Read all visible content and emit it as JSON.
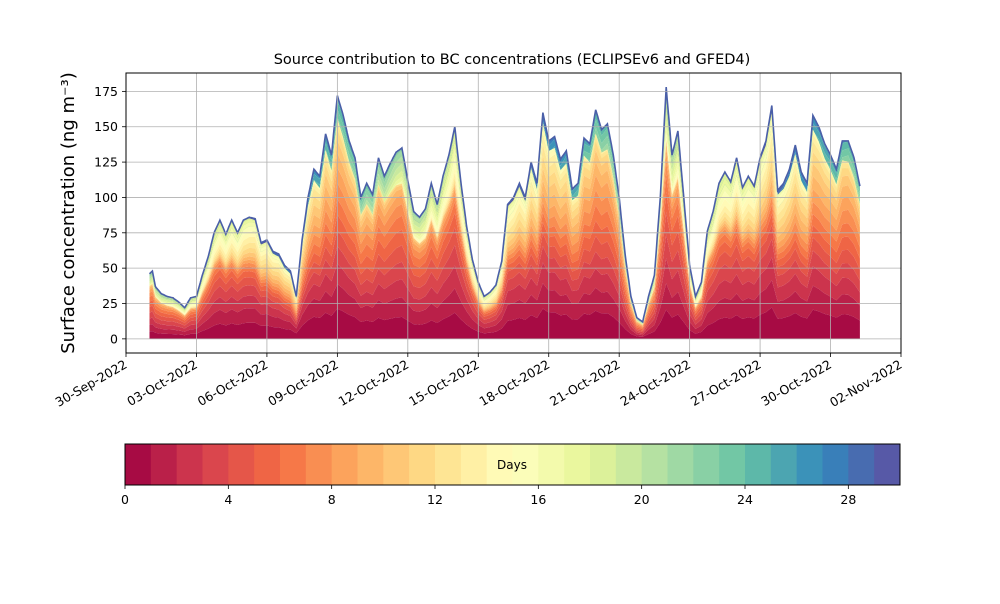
{
  "chart_data": {
    "type": "area",
    "title": "Source contribution to BC concentrations (ECLIPSEv6 and GFED4)",
    "ylabel": "Surface concentration (ng m⁻³)",
    "xlabel": "",
    "x_start": "2022-10-01",
    "x_end": "2022-11-01",
    "xlim": [
      "2022-09-30",
      "2022-11-02"
    ],
    "ylim": [
      -10,
      188
    ],
    "grid": true,
    "x_ticks": [
      "30-Sep-2022",
      "03-Oct-2022",
      "06-Oct-2022",
      "09-Oct-2022",
      "12-Oct-2022",
      "15-Oct-2022",
      "18-Oct-2022",
      "21-Oct-2022",
      "24-Oct-2022",
      "27-Oct-2022",
      "30-Oct-2022",
      "02-Nov-2022"
    ],
    "y_ticks": [
      0,
      25,
      50,
      75,
      100,
      125,
      150,
      175
    ],
    "total_profile": [
      [
        "2022-10-01T00:00",
        46
      ],
      [
        "2022-10-01T03:00",
        48
      ],
      [
        "2022-10-01T06:00",
        37
      ],
      [
        "2022-10-01T12:00",
        32
      ],
      [
        "2022-10-01T18:00",
        30
      ],
      [
        "2022-10-02T00:00",
        29
      ],
      [
        "2022-10-02T06:00",
        26
      ],
      [
        "2022-10-02T12:00",
        22
      ],
      [
        "2022-10-02T18:00",
        29
      ],
      [
        "2022-10-03T00:00",
        30
      ],
      [
        "2022-10-03T06:00",
        45
      ],
      [
        "2022-10-03T12:00",
        58
      ],
      [
        "2022-10-03T18:00",
        75
      ],
      [
        "2022-10-04T00:00",
        84
      ],
      [
        "2022-10-04T06:00",
        74
      ],
      [
        "2022-10-04T12:00",
        84
      ],
      [
        "2022-10-04T18:00",
        75
      ],
      [
        "2022-10-05T00:00",
        84
      ],
      [
        "2022-10-05T06:00",
        86
      ],
      [
        "2022-10-05T12:00",
        85
      ],
      [
        "2022-10-05T18:00",
        68
      ],
      [
        "2022-10-06T00:00",
        70
      ],
      [
        "2022-10-06T06:00",
        62
      ],
      [
        "2022-10-06T12:00",
        60
      ],
      [
        "2022-10-06T18:00",
        52
      ],
      [
        "2022-10-07T00:00",
        48
      ],
      [
        "2022-10-07T06:00",
        30
      ],
      [
        "2022-10-07T12:00",
        70
      ],
      [
        "2022-10-07T18:00",
        100
      ],
      [
        "2022-10-08T00:00",
        120
      ],
      [
        "2022-10-08T06:00",
        115
      ],
      [
        "2022-10-08T12:00",
        145
      ],
      [
        "2022-10-08T18:00",
        130
      ],
      [
        "2022-10-09T00:00",
        172
      ],
      [
        "2022-10-09T06:00",
        158
      ],
      [
        "2022-10-09T12:00",
        140
      ],
      [
        "2022-10-09T18:00",
        128
      ],
      [
        "2022-10-10T00:00",
        100
      ],
      [
        "2022-10-10T06:00",
        110
      ],
      [
        "2022-10-10T12:00",
        102
      ],
      [
        "2022-10-10T18:00",
        128
      ],
      [
        "2022-10-11T00:00",
        115
      ],
      [
        "2022-10-11T06:00",
        124
      ],
      [
        "2022-10-11T12:00",
        132
      ],
      [
        "2022-10-11T18:00",
        135
      ],
      [
        "2022-10-12T00:00",
        112
      ],
      [
        "2022-10-12T06:00",
        90
      ],
      [
        "2022-10-12T12:00",
        86
      ],
      [
        "2022-10-12T18:00",
        92
      ],
      [
        "2022-10-13T00:00",
        110
      ],
      [
        "2022-10-13T06:00",
        95
      ],
      [
        "2022-10-13T12:00",
        115
      ],
      [
        "2022-10-13T18:00",
        130
      ],
      [
        "2022-10-14T00:00",
        150
      ],
      [
        "2022-10-14T06:00",
        112
      ],
      [
        "2022-10-14T12:00",
        80
      ],
      [
        "2022-10-14T18:00",
        56
      ],
      [
        "2022-10-15T00:00",
        40
      ],
      [
        "2022-10-15T06:00",
        30
      ],
      [
        "2022-10-15T12:00",
        33
      ],
      [
        "2022-10-15T18:00",
        38
      ],
      [
        "2022-10-16T00:00",
        55
      ],
      [
        "2022-10-16T06:00",
        95
      ],
      [
        "2022-10-16T12:00",
        100
      ],
      [
        "2022-10-16T18:00",
        110
      ],
      [
        "2022-10-17T00:00",
        100
      ],
      [
        "2022-10-17T06:00",
        125
      ],
      [
        "2022-10-17T12:00",
        110
      ],
      [
        "2022-10-17T18:00",
        160
      ],
      [
        "2022-10-18T00:00",
        140
      ],
      [
        "2022-10-18T06:00",
        143
      ],
      [
        "2022-10-18T12:00",
        127
      ],
      [
        "2022-10-18T18:00",
        133
      ],
      [
        "2022-10-19T00:00",
        106
      ],
      [
        "2022-10-19T06:00",
        110
      ],
      [
        "2022-10-19T12:00",
        142
      ],
      [
        "2022-10-19T18:00",
        138
      ],
      [
        "2022-10-20T00:00",
        162
      ],
      [
        "2022-10-20T06:00",
        148
      ],
      [
        "2022-10-20T12:00",
        152
      ],
      [
        "2022-10-20T18:00",
        130
      ],
      [
        "2022-10-21T00:00",
        100
      ],
      [
        "2022-10-21T06:00",
        60
      ],
      [
        "2022-10-21T12:00",
        30
      ],
      [
        "2022-10-21T18:00",
        15
      ],
      [
        "2022-10-22T00:00",
        12
      ],
      [
        "2022-10-22T06:00",
        30
      ],
      [
        "2022-10-22T12:00",
        45
      ],
      [
        "2022-10-22T18:00",
        100
      ],
      [
        "2022-10-23T00:00",
        178
      ],
      [
        "2022-10-23T06:00",
        130
      ],
      [
        "2022-10-23T12:00",
        147
      ],
      [
        "2022-10-23T18:00",
        100
      ],
      [
        "2022-10-24T00:00",
        52
      ],
      [
        "2022-10-24T06:00",
        30
      ],
      [
        "2022-10-24T12:00",
        40
      ],
      [
        "2022-10-24T18:00",
        76
      ],
      [
        "2022-10-25T00:00",
        90
      ],
      [
        "2022-10-25T06:00",
        110
      ],
      [
        "2022-10-25T12:00",
        118
      ],
      [
        "2022-10-25T18:00",
        111
      ],
      [
        "2022-10-26T00:00",
        128
      ],
      [
        "2022-10-26T06:00",
        107
      ],
      [
        "2022-10-26T12:00",
        115
      ],
      [
        "2022-10-26T18:00",
        108
      ],
      [
        "2022-10-27T00:00",
        128
      ],
      [
        "2022-10-27T06:00",
        140
      ],
      [
        "2022-10-27T12:00",
        165
      ],
      [
        "2022-10-27T18:00",
        105
      ],
      [
        "2022-10-28T00:00",
        110
      ],
      [
        "2022-10-28T06:00",
        120
      ],
      [
        "2022-10-28T12:00",
        137
      ],
      [
        "2022-10-28T18:00",
        118
      ],
      [
        "2022-10-29T00:00",
        110
      ],
      [
        "2022-10-29T06:00",
        158
      ],
      [
        "2022-10-29T12:00",
        150
      ],
      [
        "2022-10-29T18:00",
        138
      ],
      [
        "2022-10-30T00:00",
        130
      ],
      [
        "2022-10-30T06:00",
        120
      ],
      [
        "2022-10-30T12:00",
        140
      ],
      [
        "2022-10-30T18:00",
        140
      ],
      [
        "2022-10-31T00:00",
        128
      ],
      [
        "2022-10-31T06:00",
        108
      ]
    ],
    "colorbar": {
      "label": "Days",
      "vmin": 0,
      "vmax": 30,
      "levels": 30,
      "ticks": [
        0,
        4,
        8,
        12,
        16,
        20,
        24,
        28
      ],
      "colormap": [
        "#9e0142",
        "#d53e4f",
        "#f46d43",
        "#fdae61",
        "#fee08b",
        "#ffffbf",
        "#e6f598",
        "#abdda4",
        "#66c2a5",
        "#3288bd",
        "#5e4fa2"
      ]
    },
    "outline_color": "#4a5fa8"
  }
}
